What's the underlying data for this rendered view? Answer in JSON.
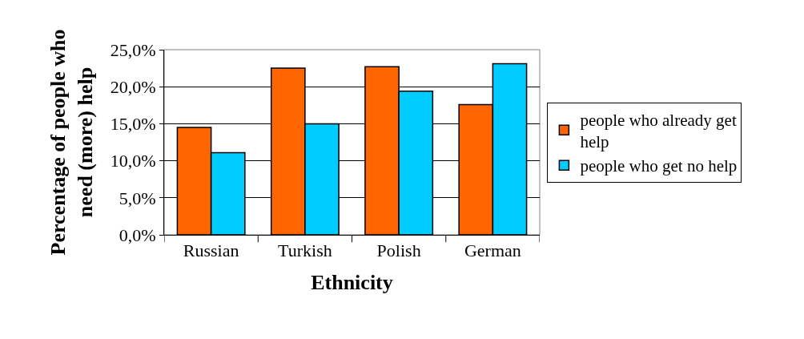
{
  "chart_data": {
    "type": "bar",
    "xlabel": "Ethnicity",
    "ylabel": "Percentage of people who need (more) help",
    "categories": [
      "Russian",
      "Turkish",
      "Polish",
      "German"
    ],
    "series": [
      {
        "name": "people who already get help",
        "color": "#ff6600",
        "values": [
          14.5,
          22.5,
          22.7,
          17.6
        ]
      },
      {
        "name": "people who get no help",
        "color": "#00ccff",
        "values": [
          11.1,
          15.0,
          19.4,
          23.1
        ]
      }
    ],
    "ylim": [
      0,
      25
    ],
    "yticks": [
      {
        "value": 0,
        "label": "0,0%"
      },
      {
        "value": 5,
        "label": "5,0%"
      },
      {
        "value": 10,
        "label": "10,0%"
      },
      {
        "value": 15,
        "label": "15,0%"
      },
      {
        "value": 20,
        "label": "20,0%"
      },
      {
        "value": 25,
        "label": "25,0%"
      }
    ],
    "grid": "y",
    "legend": "right"
  }
}
